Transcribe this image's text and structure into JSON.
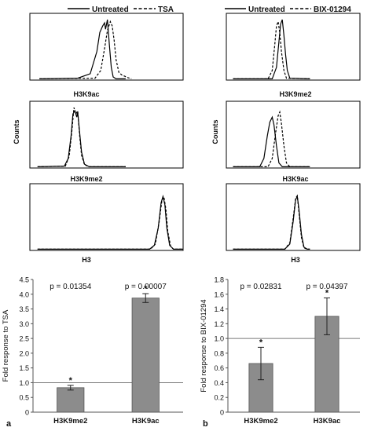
{
  "panels": [
    {
      "panel_letter": "a",
      "legend": {
        "solid_label": "Untreated",
        "dashed_label": "TSA"
      },
      "counts_label": "Counts",
      "histograms": [
        {
          "label": "H3K9ac",
          "solid": [
            [
              0.1,
              0.02
            ],
            [
              0.5,
              0.03
            ],
            [
              0.63,
              0.1
            ],
            [
              0.7,
              0.45
            ],
            [
              0.73,
              0.75
            ],
            [
              0.76,
              0.85
            ],
            [
              0.78,
              0.9
            ],
            [
              0.79,
              0.8
            ],
            [
              0.81,
              0.95
            ],
            [
              0.83,
              0.55
            ],
            [
              0.85,
              0.2
            ],
            [
              0.87,
              0.05
            ],
            [
              0.9,
              0.02
            ],
            [
              1.0,
              0.02
            ]
          ],
          "dashed": [
            [
              0.1,
              0.02
            ],
            [
              0.68,
              0.03
            ],
            [
              0.74,
              0.15
            ],
            [
              0.78,
              0.5
            ],
            [
              0.81,
              0.78
            ],
            [
              0.84,
              0.92
            ],
            [
              0.86,
              0.85
            ],
            [
              0.88,
              0.62
            ],
            [
              0.9,
              0.32
            ],
            [
              0.93,
              0.12
            ],
            [
              0.96,
              0.08
            ],
            [
              0.99,
              0.06
            ],
            [
              1.02,
              0.04
            ],
            [
              1.06,
              0.02
            ]
          ]
        },
        {
          "label": "H3K9me2",
          "solid": [
            [
              0.08,
              0.02
            ],
            [
              0.36,
              0.03
            ],
            [
              0.4,
              0.15
            ],
            [
              0.43,
              0.5
            ],
            [
              0.45,
              0.85
            ],
            [
              0.47,
              0.9
            ],
            [
              0.49,
              0.8
            ],
            [
              0.5,
              0.88
            ],
            [
              0.52,
              0.55
            ],
            [
              0.54,
              0.25
            ],
            [
              0.57,
              0.06
            ],
            [
              0.62,
              0.02
            ],
            [
              1.0,
              0.02
            ]
          ],
          "dashed": [
            [
              0.08,
              0.02
            ],
            [
              0.37,
              0.03
            ],
            [
              0.41,
              0.18
            ],
            [
              0.44,
              0.6
            ],
            [
              0.46,
              0.95
            ],
            [
              0.48,
              0.85
            ],
            [
              0.5,
              0.9
            ],
            [
              0.52,
              0.5
            ],
            [
              0.54,
              0.2
            ],
            [
              0.57,
              0.05
            ],
            [
              0.62,
              0.02
            ],
            [
              1.0,
              0.02
            ]
          ]
        },
        {
          "label": "H3",
          "solid": [
            [
              0.08,
              0.02
            ],
            [
              1.25,
              0.02
            ],
            [
              1.3,
              0.08
            ],
            [
              1.34,
              0.35
            ],
            [
              1.37,
              0.75
            ],
            [
              1.39,
              0.85
            ],
            [
              1.41,
              0.72
            ],
            [
              1.43,
              0.35
            ],
            [
              1.46,
              0.08
            ],
            [
              1.5,
              0.02
            ],
            [
              1.6,
              0.02
            ]
          ],
          "dashed": [
            [
              0.08,
              0.02
            ],
            [
              1.26,
              0.02
            ],
            [
              1.31,
              0.1
            ],
            [
              1.35,
              0.45
            ],
            [
              1.38,
              0.8
            ],
            [
              1.4,
              0.84
            ],
            [
              1.42,
              0.65
            ],
            [
              1.44,
              0.3
            ],
            [
              1.47,
              0.06
            ],
            [
              1.5,
              0.02
            ],
            [
              1.6,
              0.02
            ]
          ]
        }
      ]
    },
    {
      "panel_letter": "b",
      "legend": {
        "solid_label": "Untreated",
        "dashed_label": "BIX-01294"
      },
      "counts_label": "Counts",
      "histograms": [
        {
          "label": "H3K9me2",
          "solid": [
            [
              0.08,
              0.02
            ],
            [
              0.55,
              0.02
            ],
            [
              0.6,
              0.2
            ],
            [
              0.63,
              0.6
            ],
            [
              0.65,
              0.88
            ],
            [
              0.67,
              0.95
            ],
            [
              0.69,
              0.7
            ],
            [
              0.71,
              0.4
            ],
            [
              0.73,
              0.15
            ],
            [
              0.76,
              0.03
            ],
            [
              1.0,
              0.02
            ]
          ],
          "dashed": [
            [
              0.08,
              0.02
            ],
            [
              0.5,
              0.02
            ],
            [
              0.55,
              0.15
            ],
            [
              0.58,
              0.55
            ],
            [
              0.6,
              0.85
            ],
            [
              0.62,
              0.92
            ],
            [
              0.64,
              0.75
            ],
            [
              0.66,
              0.45
            ],
            [
              0.69,
              0.15
            ],
            [
              0.72,
              0.03
            ],
            [
              1.0,
              0.02
            ]
          ]
        },
        {
          "label": "H3K9ac",
          "solid": [
            [
              0.08,
              0.02
            ],
            [
              0.4,
              0.02
            ],
            [
              0.45,
              0.15
            ],
            [
              0.49,
              0.5
            ],
            [
              0.52,
              0.72
            ],
            [
              0.55,
              0.8
            ],
            [
              0.57,
              0.68
            ],
            [
              0.6,
              0.35
            ],
            [
              0.63,
              0.08
            ],
            [
              0.67,
              0.02
            ],
            [
              1.0,
              0.02
            ]
          ],
          "dashed": [
            [
              0.08,
              0.02
            ],
            [
              0.5,
              0.02
            ],
            [
              0.55,
              0.15
            ],
            [
              0.59,
              0.55
            ],
            [
              0.62,
              0.82
            ],
            [
              0.64,
              0.88
            ],
            [
              0.66,
              0.7
            ],
            [
              0.69,
              0.35
            ],
            [
              0.72,
              0.08
            ],
            [
              0.76,
              0.02
            ],
            [
              1.0,
              0.02
            ]
          ]
        },
        {
          "label": "H3",
          "solid": [
            [
              0.08,
              0.02
            ],
            [
              0.7,
              0.02
            ],
            [
              0.76,
              0.1
            ],
            [
              0.8,
              0.45
            ],
            [
              0.83,
              0.8
            ],
            [
              0.85,
              0.85
            ],
            [
              0.87,
              0.65
            ],
            [
              0.9,
              0.25
            ],
            [
              0.93,
              0.05
            ],
            [
              0.97,
              0.02
            ],
            [
              1.0,
              0.02
            ]
          ],
          "dashed": [
            [
              0.08,
              0.02
            ],
            [
              0.7,
              0.02
            ],
            [
              0.76,
              0.12
            ],
            [
              0.8,
              0.5
            ],
            [
              0.83,
              0.82
            ],
            [
              0.85,
              0.86
            ],
            [
              0.87,
              0.6
            ],
            [
              0.9,
              0.2
            ],
            [
              0.93,
              0.04
            ],
            [
              0.97,
              0.02
            ],
            [
              1.0,
              0.02
            ]
          ]
        }
      ]
    }
  ],
  "chart_data": [
    {
      "type": "bar",
      "panel": "a",
      "categories": [
        "H3K9me2",
        "H3K9ac"
      ],
      "values": [
        0.83,
        3.87
      ],
      "errors": [
        0.08,
        0.15
      ],
      "stars": [
        "*",
        "*"
      ],
      "pvalues": [
        "p = 0.01354",
        "p = 0.00007"
      ],
      "ylabel": "Fold response to TSA",
      "ylim": [
        0,
        4.5
      ],
      "yticks": [
        "0",
        "0.5",
        "1.0",
        "1.5",
        "2.0",
        "2.5",
        "3.0",
        "3.5",
        "4.0",
        "4.5"
      ],
      "reference_line": 1.0,
      "bar_color": "#8c8c8c"
    },
    {
      "type": "bar",
      "panel": "b",
      "categories": [
        "H3K9me2",
        "H3K9ac"
      ],
      "values": [
        0.66,
        1.3
      ],
      "errors": [
        0.22,
        0.25
      ],
      "stars": [
        "*",
        "*"
      ],
      "pvalues": [
        "p = 0.02831",
        "p = 0.04397"
      ],
      "ylabel": "Fold response to BIX-01294",
      "ylim": [
        0,
        1.8
      ],
      "yticks": [
        "0",
        "0.2",
        "0.4",
        "0.6",
        "0.8",
        "1.0",
        "1.2",
        "1.4",
        "1.6",
        "1.8"
      ],
      "reference_line": 1.0,
      "bar_color": "#8c8c8c"
    }
  ]
}
